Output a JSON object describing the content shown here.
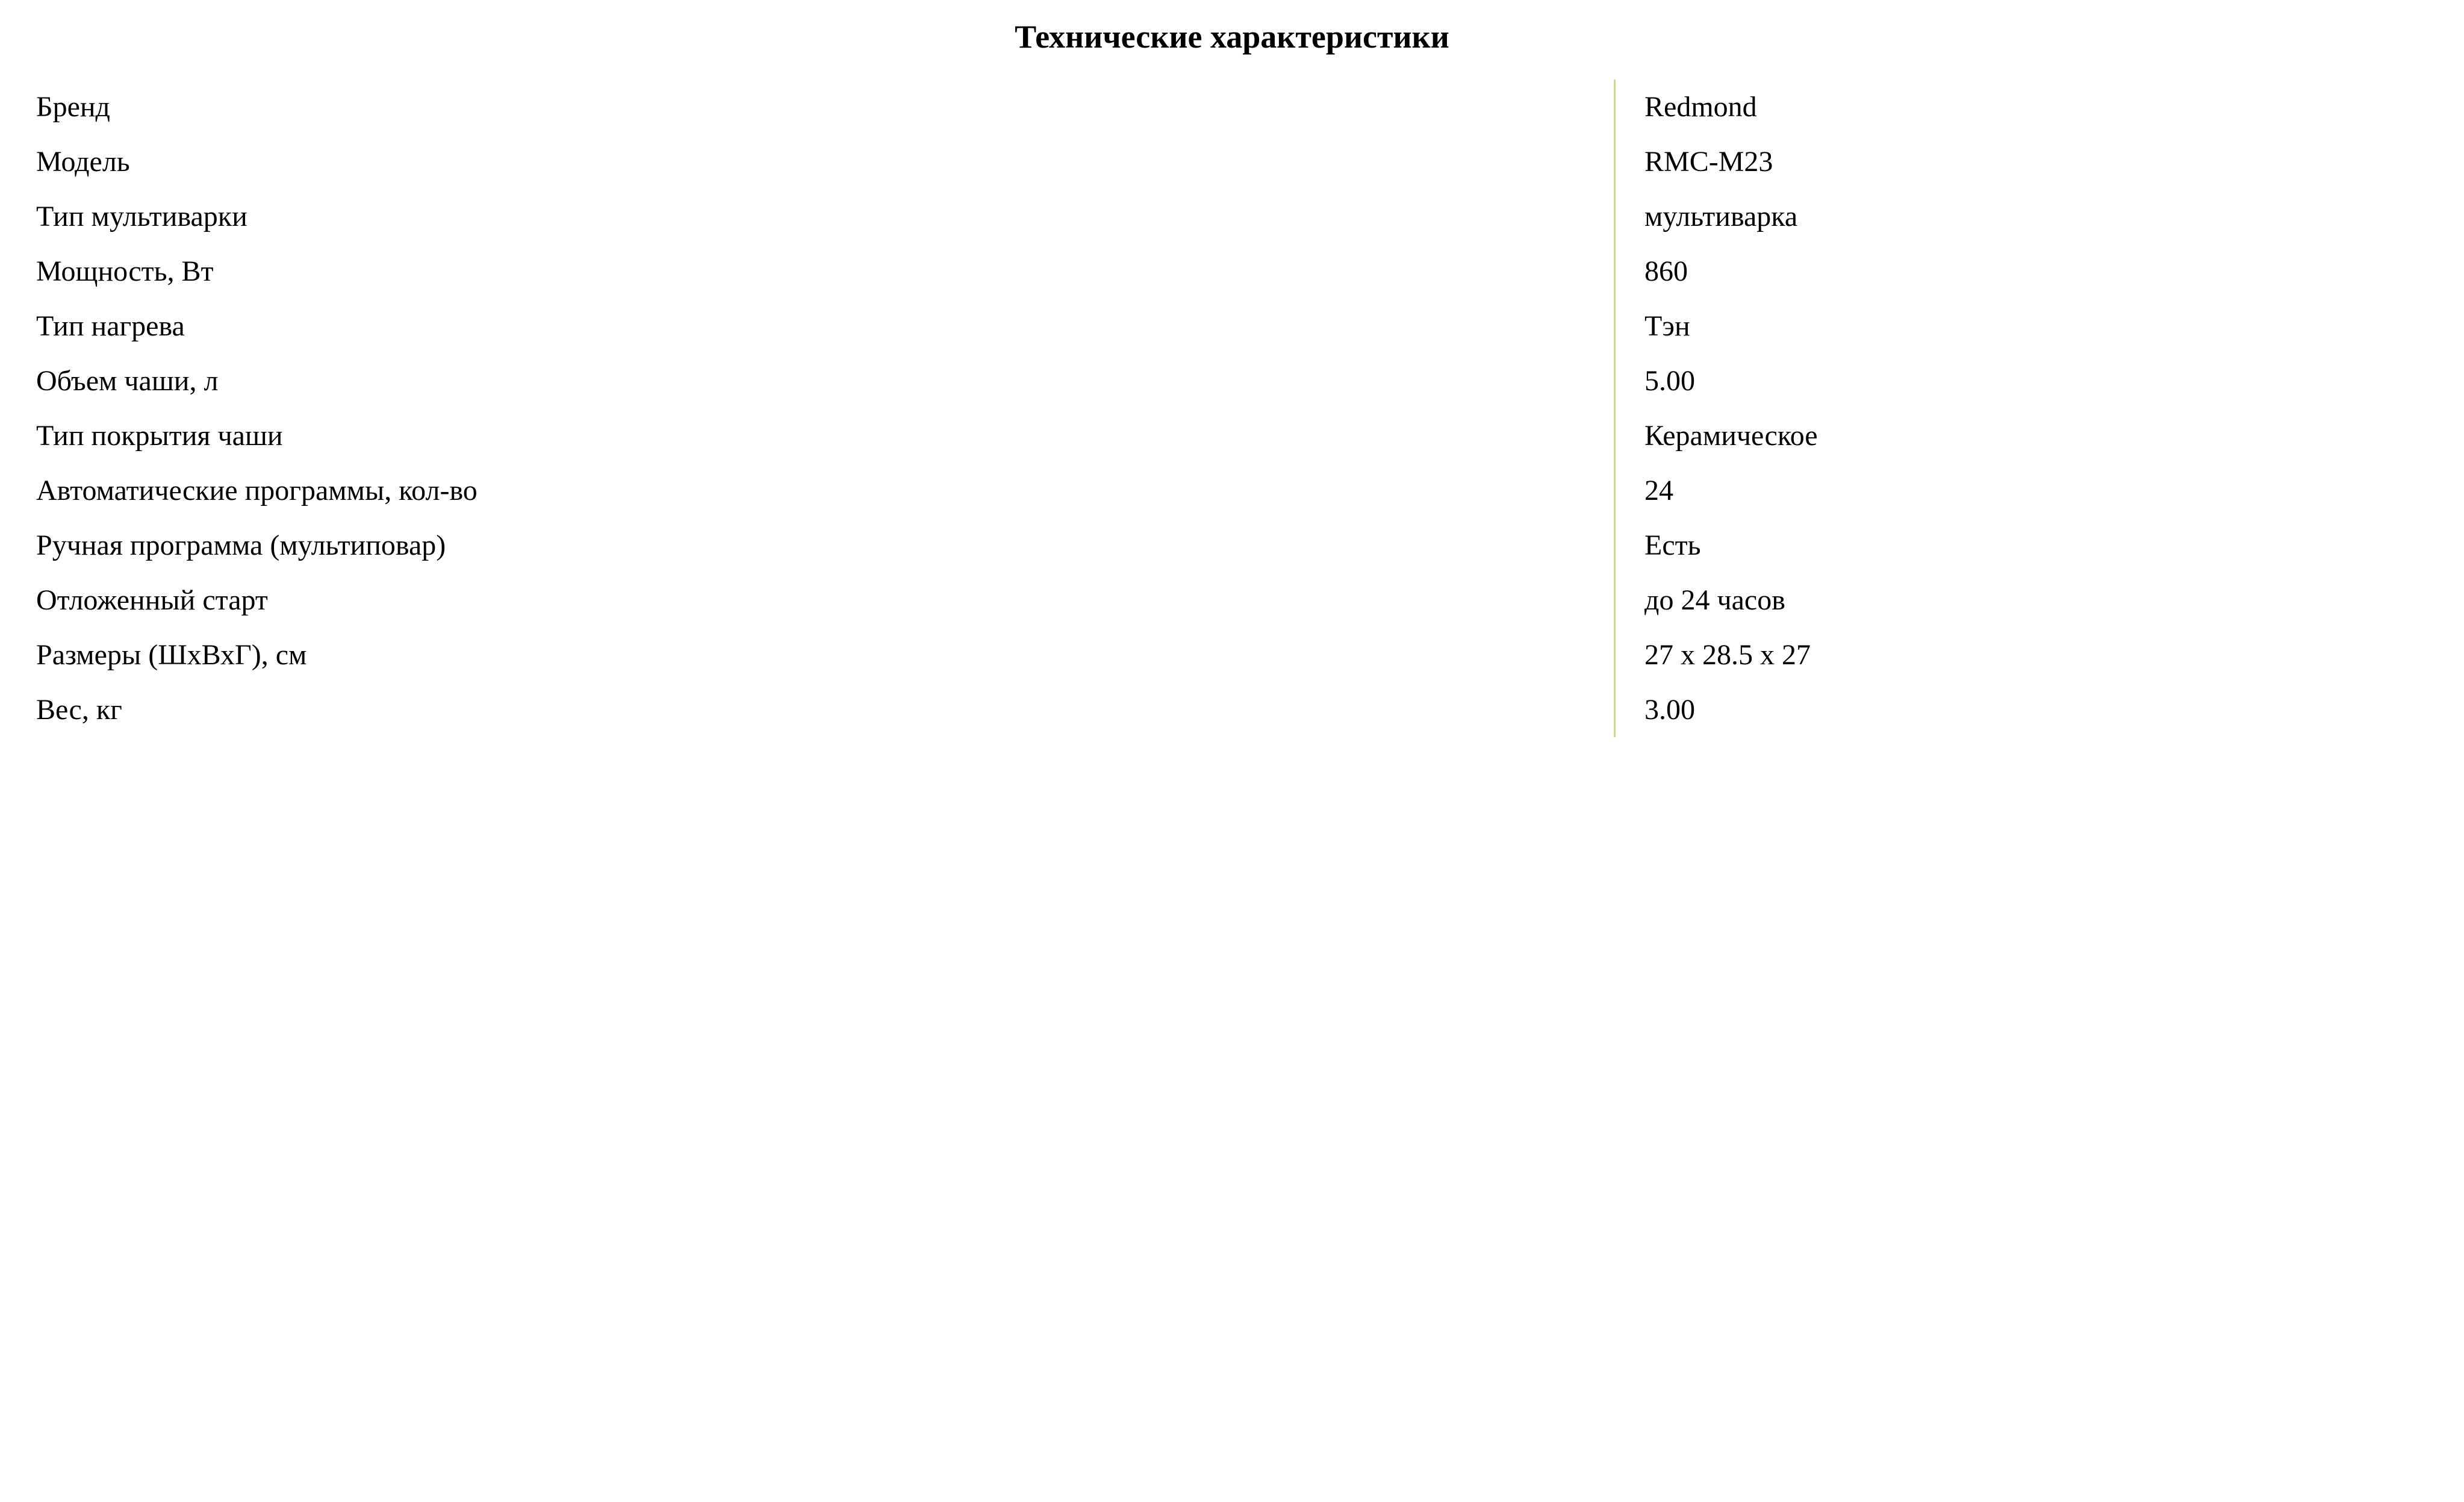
{
  "title": "Технические характеристики",
  "table": {
    "type": "table",
    "divider_color": "#d4d49a",
    "background_color": "#ffffff",
    "text_color": "#000000",
    "title_fontsize": 54,
    "cell_fontsize": 48,
    "label_col_width_pct": 66,
    "value_col_width_pct": 34,
    "rows": [
      {
        "label": "Бренд",
        "value": "Redmond"
      },
      {
        "label": "Модель",
        "value": "RMC-M23"
      },
      {
        "label": "Тип мультиварки",
        "value": "мультиварка"
      },
      {
        "label": "Мощность, Вт",
        "value": "860"
      },
      {
        "label": "Тип нагрева",
        "value": "Тэн"
      },
      {
        "label": "Объем чаши, л",
        "value": "5.00"
      },
      {
        "label": "Тип покрытия чаши",
        "value": "Керамическое"
      },
      {
        "label": "Автоматические программы, кол-во",
        "value": "24"
      },
      {
        "label": "Ручная программа (мультиповар)",
        "value": "Есть"
      },
      {
        "label": "Отложенный старт",
        "value": "до 24 часов"
      },
      {
        "label": "Размеры (ШхВхГ), см",
        "value": "27 x 28.5 x 27"
      },
      {
        "label": "Вес, кг",
        "value": "3.00"
      }
    ]
  }
}
